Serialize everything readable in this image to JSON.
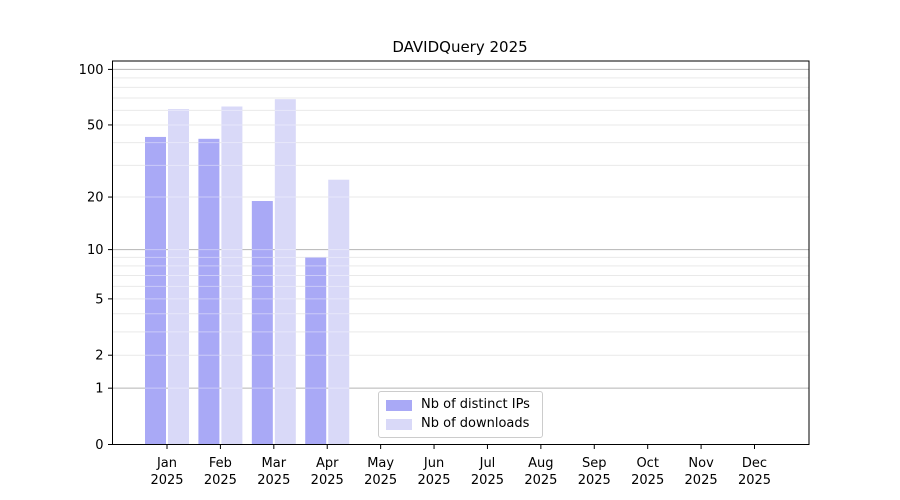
{
  "title": "DAVIDQuery 2025",
  "chart_data": {
    "type": "bar",
    "title": "DAVIDQuery 2025",
    "x_months": [
      "Jan",
      "Feb",
      "Mar",
      "Apr",
      "May",
      "Jun",
      "Jul",
      "Aug",
      "Sep",
      "Oct",
      "Nov",
      "Dec"
    ],
    "x_year": "2025",
    "series": [
      {
        "name": "Nb of distinct IPs",
        "color": "#a9a9f6",
        "values": [
          43,
          42,
          19,
          9,
          null,
          null,
          null,
          null,
          null,
          null,
          null,
          null
        ]
      },
      {
        "name": "Nb of downloads",
        "color": "#d9d9f8",
        "values": [
          61,
          63,
          69,
          25,
          null,
          null,
          null,
          null,
          null,
          null,
          null,
          null
        ]
      }
    ],
    "y_scale": "log1p",
    "y_ticks": [
      0,
      1,
      2,
      5,
      10,
      20,
      50,
      100
    ],
    "y_max": 111,
    "ylim": [
      0,
      111
    ],
    "grid": {
      "major": [
        1,
        10,
        100
      ],
      "minor": [
        2,
        3,
        4,
        5,
        6,
        7,
        8,
        9,
        20,
        30,
        40,
        50,
        60,
        70,
        80,
        90
      ],
      "major_color": "#b5b5b5",
      "minor_color": "#e9e9e9"
    },
    "legend_position": "lower center",
    "axis_color": "#000000",
    "bar_colors": {
      "distinct_ips": "#a9a9f6",
      "downloads": "#d9d9f8"
    }
  }
}
